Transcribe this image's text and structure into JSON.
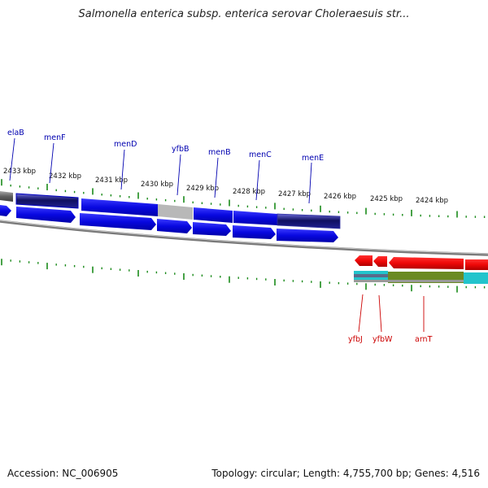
{
  "header": {
    "title": "Salmonella enterica subsp. enterica serovar Choleraesuis str..."
  },
  "footer": {
    "accession": "Accession: NC_006905",
    "summary": "Topology: circular; Length: 4,755,700 bp; Genes: 4,516"
  },
  "scale_labels": [
    "2433 kbp",
    "2432 kbp",
    "2431 kbp",
    "2430 kbp",
    "2429 kbp",
    "2428 kbp",
    "2427 kbp",
    "2426 kbp",
    "2425 kbp",
    "2424 kbp"
  ],
  "gene_labels_top": [
    "elaB",
    "menF",
    "menD",
    "yfbB",
    "menB",
    "menC",
    "menE"
  ],
  "gene_labels_bottom": [
    "yfbJ",
    "yfbW",
    "arnT"
  ],
  "colors": {
    "forward_gene": "#0a0aee",
    "reverse_gene": "#ee0a0a",
    "backbone": "#808080",
    "tick": "#1a8a1a",
    "cyan_track": "#20c8d0",
    "olive_track": "#6b8a20"
  }
}
